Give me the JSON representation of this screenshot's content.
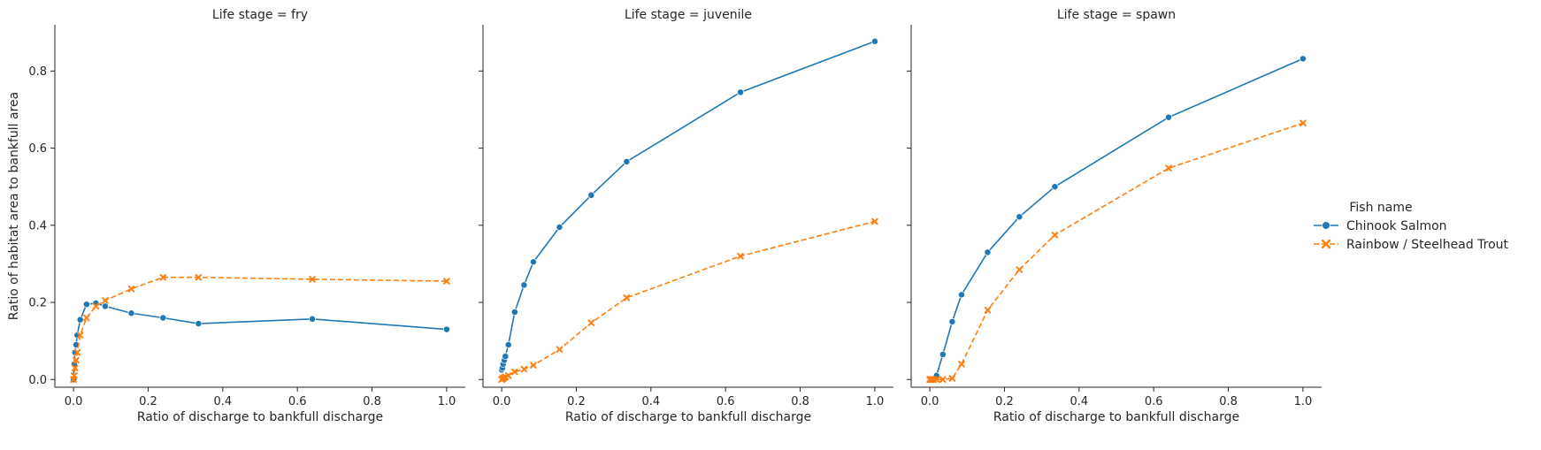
{
  "chart_data": {
    "type": "line",
    "xlabel": "Ratio of discharge to bankfull discharge",
    "ylabel": "Ratio of habitat area to bankfull area",
    "xlim": [
      -0.05,
      1.05
    ],
    "ylim": [
      -0.02,
      0.92
    ],
    "xticks": [
      "0.0",
      "0.2",
      "0.4",
      "0.6",
      "0.8",
      "1.0"
    ],
    "yticks": [
      "0.0",
      "0.2",
      "0.4",
      "0.6",
      "0.8"
    ],
    "grid": false,
    "legend": {
      "title": "Fish name",
      "placement": "right",
      "entries": [
        "Chinook Salmon",
        "Rainbow / Steelhead Trout"
      ]
    },
    "colors": {
      "Chinook Salmon": "#1f77b4",
      "Rainbow / Steelhead Trout": "#ff7f0e"
    },
    "panels": [
      {
        "title": "Life stage = fry",
        "series": [
          {
            "name": "Chinook Salmon",
            "x": [
              0,
              0.002,
              0.004,
              0.007,
              0.01,
              0.018,
              0.035,
              0.06,
              0.085,
              0.155,
              0.24,
              0.335,
              0.64,
              1.0
            ],
            "y": [
              0,
              0.04,
              0.07,
              0.09,
              0.115,
              0.155,
              0.195,
              0.198,
              0.19,
              0.172,
              0.16,
              0.145,
              0.157,
              0.13
            ]
          },
          {
            "name": "Rainbow / Steelhead Trout",
            "x": [
              0,
              0.002,
              0.004,
              0.007,
              0.01,
              0.018,
              0.035,
              0.06,
              0.085,
              0.155,
              0.24,
              0.335,
              0.64,
              1.0
            ],
            "y": [
              0,
              0.01,
              0.03,
              0.05,
              0.07,
              0.115,
              0.16,
              0.19,
              0.205,
              0.235,
              0.265,
              0.265,
              0.26,
              0.255
            ]
          }
        ]
      },
      {
        "title": "Life stage = juvenile",
        "series": [
          {
            "name": "Chinook Salmon",
            "x": [
              0,
              0.002,
              0.004,
              0.007,
              0.01,
              0.018,
              0.035,
              0.06,
              0.085,
              0.155,
              0.24,
              0.335,
              0.64,
              1.0
            ],
            "y": [
              0.025,
              0.03,
              0.04,
              0.05,
              0.06,
              0.09,
              0.175,
              0.245,
              0.305,
              0.395,
              0.478,
              0.565,
              0.745,
              0.877
            ]
          },
          {
            "name": "Rainbow / Steelhead Trout",
            "x": [
              0,
              0.002,
              0.004,
              0.007,
              0.01,
              0.018,
              0.035,
              0.06,
              0.085,
              0.155,
              0.24,
              0.335,
              0.64,
              1.0
            ],
            "y": [
              0.0,
              0.002,
              0.003,
              0.005,
              0.007,
              0.01,
              0.02,
              0.027,
              0.037,
              0.078,
              0.147,
              0.212,
              0.32,
              0.41
            ]
          }
        ]
      },
      {
        "title": "Life stage = spawn",
        "series": [
          {
            "name": "Chinook Salmon",
            "x": [
              0,
              0.002,
              0.004,
              0.007,
              0.01,
              0.018,
              0.035,
              0.06,
              0.085,
              0.155,
              0.24,
              0.335,
              0.64,
              1.0
            ],
            "y": [
              0,
              0,
              0,
              0,
              0,
              0.01,
              0.065,
              0.15,
              0.22,
              0.33,
              0.422,
              0.5,
              0.68,
              0.832
            ]
          },
          {
            "name": "Rainbow / Steelhead Trout",
            "x": [
              0,
              0.002,
              0.004,
              0.007,
              0.01,
              0.018,
              0.035,
              0.06,
              0.085,
              0.155,
              0.24,
              0.335,
              0.64,
              1.0
            ],
            "y": [
              0,
              0,
              0,
              0,
              0,
              0,
              0,
              0.003,
              0.04,
              0.18,
              0.285,
              0.375,
              0.548,
              0.665
            ]
          }
        ]
      }
    ]
  }
}
